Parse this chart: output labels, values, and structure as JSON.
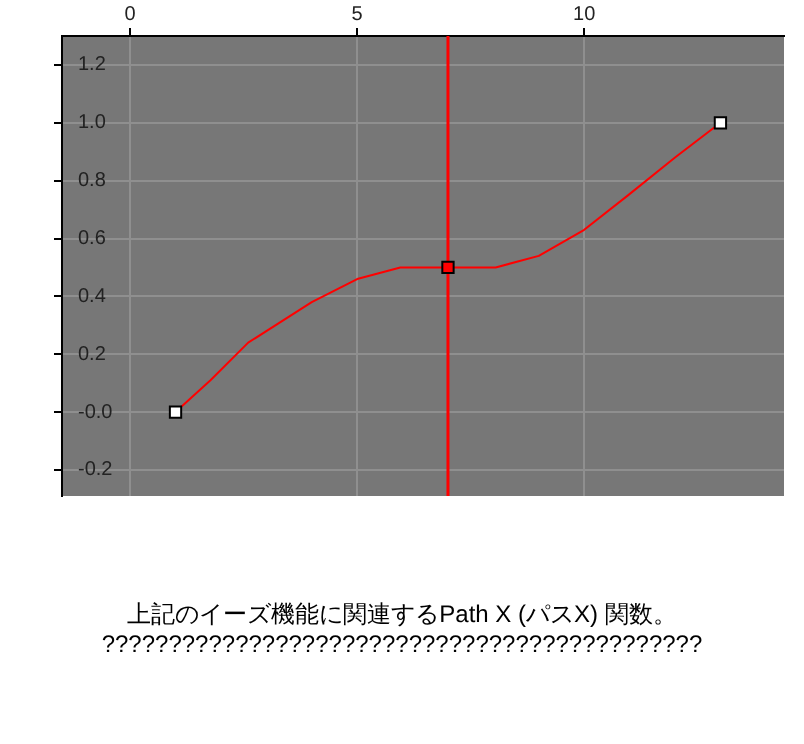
{
  "chart_data": {
    "type": "line",
    "xlim": [
      -1.5,
      14.4
    ],
    "ylim": [
      -0.29,
      1.3
    ],
    "xticks": [
      0,
      5,
      10
    ],
    "yticks": [
      {
        "value": -0.2,
        "label": "-0.2"
      },
      {
        "value": 0,
        "label": "-0.0"
      },
      {
        "value": 0.2,
        "label": "0.2"
      },
      {
        "value": 0.4,
        "label": "0.4"
      },
      {
        "value": 0.6,
        "label": "0.6"
      },
      {
        "value": 0.8,
        "label": "0.8"
      },
      {
        "value": 1,
        "label": "1.0"
      },
      {
        "value": 1.2,
        "label": "1.2"
      }
    ],
    "grid": true,
    "series": [
      {
        "color": "#ff0000",
        "marker": "none",
        "x": [
          1,
          1.77,
          2.6,
          4,
          5,
          5.95,
          7,
          8.05,
          9,
          10,
          10.97,
          12,
          13
        ],
        "values": [
          0,
          0.11,
          0.24,
          0.38,
          0.46,
          0.5,
          0.5,
          0.5,
          0.54,
          0.63,
          0.75,
          0.88,
          1
        ]
      },
      {
        "type": "scatter",
        "marker": "square",
        "colors": [
          "#ffffff",
          "#ff0000",
          "#ffffff"
        ],
        "x": [
          1,
          7,
          13
        ],
        "values": [
          0,
          0.5,
          1
        ]
      }
    ],
    "ref_lines": [
      {
        "axis": "x",
        "value": 7,
        "color": "#ff0000"
      }
    ],
    "annotations": [
      "上記のイーズ機能に関連するPath X (パスX) 関数。",
      "?????????????????????????????????????????????"
    ]
  }
}
